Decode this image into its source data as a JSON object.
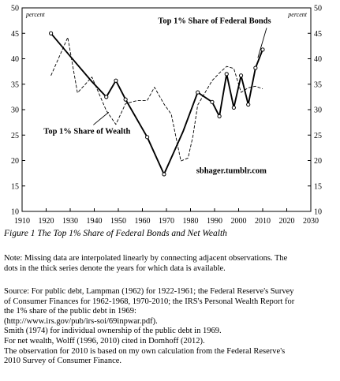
{
  "chart_data": {
    "type": "line",
    "xlim": [
      1910,
      2030
    ],
    "ylim": [
      10,
      50
    ],
    "x_ticks": [
      "1910",
      "1920",
      "1930",
      "1940",
      "1950",
      "1960",
      "1970",
      "1980",
      "1990",
      "2000",
      "2010",
      "2020",
      "2030"
    ],
    "y_ticks": [
      "10",
      "15",
      "20",
      "25",
      "30",
      "35",
      "40",
      "45",
      "50"
    ],
    "y_unit_left": "percent",
    "y_unit_right": "percent",
    "grid": false,
    "series": [
      {
        "name": "Top 1% Share of Federal Bonds",
        "style": "solid",
        "color": "#000000",
        "points": [
          [
            1922,
            45
          ],
          [
            1930,
            40.5
          ],
          [
            1939,
            35.5
          ],
          [
            1945,
            32.5
          ],
          [
            1949,
            35.7
          ],
          [
            1953,
            32
          ],
          [
            1962,
            24.6
          ],
          [
            1969,
            17.3
          ],
          [
            1977,
            25.8
          ],
          [
            1983,
            33.4
          ],
          [
            1989,
            31.5
          ],
          [
            1992,
            28.7
          ],
          [
            1995,
            37
          ],
          [
            1998,
            30.4
          ],
          [
            2001,
            36.7
          ],
          [
            2004,
            31
          ],
          [
            2007,
            38.2
          ],
          [
            2010,
            41.8
          ]
        ],
        "markers": [
          [
            1922,
            45
          ],
          [
            1945,
            32.5
          ],
          [
            1949,
            35.7
          ],
          [
            1953,
            32
          ],
          [
            1962,
            24.6
          ],
          [
            1969,
            17.3
          ],
          [
            1983,
            33.4
          ],
          [
            1989,
            31.5
          ],
          [
            1992,
            28.7
          ],
          [
            1995,
            37
          ],
          [
            1998,
            30.4
          ],
          [
            2001,
            36.7
          ],
          [
            2004,
            31
          ],
          [
            2007,
            38.2
          ],
          [
            2010,
            41.8
          ]
        ]
      },
      {
        "name": "Top 1% Share of Wealth",
        "style": "dashed",
        "color": "#000000",
        "points": [
          [
            1922,
            36.7
          ],
          [
            1929,
            44.2
          ],
          [
            1933,
            33.3
          ],
          [
            1939,
            36.4
          ],
          [
            1945,
            29.8
          ],
          [
            1949,
            27.1
          ],
          [
            1953,
            31.2
          ],
          [
            1958,
            31.8
          ],
          [
            1962,
            31.8
          ],
          [
            1965,
            34.4
          ],
          [
            1969,
            31.1
          ],
          [
            1972,
            29.1
          ],
          [
            1976,
            19.9
          ],
          [
            1979,
            20.5
          ],
          [
            1981,
            24.8
          ],
          [
            1983,
            30.9
          ],
          [
            1989,
            35.7
          ],
          [
            1992,
            37.2
          ],
          [
            1995,
            38.5
          ],
          [
            1998,
            38.1
          ],
          [
            2001,
            33.4
          ],
          [
            2004,
            34.3
          ],
          [
            2007,
            34.6
          ],
          [
            2010,
            34.1
          ]
        ]
      }
    ],
    "annotations": [
      {
        "text": "Top 1% Share of Federal Bonds",
        "x": 1990,
        "y": 47,
        "arrow_to": [
          2008,
          40.2
        ]
      },
      {
        "text": "Top 1% Share of Wealth",
        "x": 1937,
        "y": 25.3,
        "arrow_to": [
          1946,
          29.5
        ]
      },
      {
        "text": "sbhager.tumblr.com",
        "x": 1997,
        "y": 17.5
      }
    ]
  },
  "caption": "Figure 1 The Top 1% Share of Federal Bonds and Net Wealth",
  "note_lines": [
    "Note: Missing data are interpolated linearly by connecting adjacent observations. The",
    "dots in the thick series denote the years for which data is available."
  ],
  "source_lines": [
    "Source: For public debt, Lampman (1962) for 1922-1961; the Federal Reserve's Survey",
    "of Consumer Finances for 1962-1968, 1970-2010; the IRS's Personal Wealth Report for",
    "the 1% share of the public debt in 1969:",
    "(http://www.irs.gov/pub/irs-soi/69inpwar.pdf).",
    "Smith (1974) for individual ownership of the public debt in 1969.",
    "For net wealth, Wolff (1996, 2010) cited in Domhoff (2012).",
    "The observation for 2010 is based on my own calculation from the Federal Reserve's",
    "2010 Survey of Consumer Finance."
  ]
}
